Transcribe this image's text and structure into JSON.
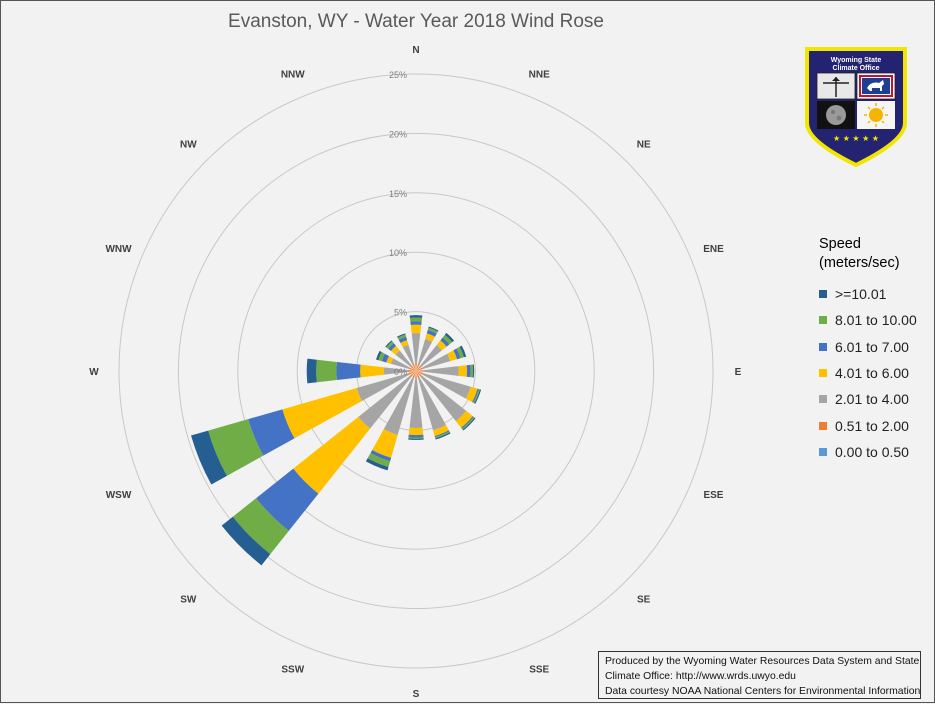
{
  "chart_data": {
    "type": "radar",
    "title": "Evanston, WY - Water Year 2018 Wind Rose",
    "directions": [
      "N",
      "NNE",
      "NE",
      "ENE",
      "E",
      "ESE",
      "SE",
      "SSE",
      "S",
      "SSW",
      "SW",
      "WSW",
      "W",
      "WNW",
      "NW",
      "NNW"
    ],
    "radial_ticks": [
      "5%",
      "10%",
      "15%",
      "20%",
      "25%"
    ],
    "rlim": [
      0,
      25
    ],
    "legend_title": "Speed (meters/sec)",
    "legend_position": "right",
    "series": [
      {
        "name": "0.00 to 0.50",
        "color": "#5b9bd5",
        "values": [
          0,
          0,
          0,
          0,
          0,
          0,
          0,
          0,
          0,
          0,
          0,
          0,
          0,
          0,
          0,
          0
        ]
      },
      {
        "name": "0.51 to 2.00",
        "color": "#ed7d31",
        "values": [
          0.7,
          0.6,
          0.6,
          0.6,
          0.6,
          0.6,
          0.6,
          0.6,
          0.6,
          0.6,
          0.7,
          0.7,
          0.7,
          0.6,
          0.6,
          0.6
        ]
      },
      {
        "name": "2.01 to 4.00",
        "color": "#a5a5a5",
        "values": [
          2.5,
          2.2,
          2.2,
          2.4,
          3.0,
          4.2,
          4.8,
          4.6,
          4.2,
          5.0,
          5.5,
          4.5,
          2.0,
          1.6,
          1.6,
          1.7
        ]
      },
      {
        "name": "4.01 to 6.00",
        "color": "#ffc000",
        "values": [
          0.7,
          0.5,
          0.5,
          0.6,
          0.7,
          0.6,
          0.7,
          0.5,
          0.6,
          2.0,
          7.0,
          6.5,
          2.0,
          0.4,
          0.5,
          0.4
        ]
      },
      {
        "name": "6.01 to 7.00",
        "color": "#4472c4",
        "values": [
          0.3,
          0.3,
          0.3,
          0.3,
          0.3,
          0.1,
          0.1,
          0.1,
          0.2,
          0.3,
          4.0,
          3.0,
          2.0,
          0.4,
          0.3,
          0.3
        ]
      },
      {
        "name": "8.01 to 10.00",
        "color": "#70ad47",
        "values": [
          0.3,
          0.2,
          0.3,
          0.3,
          0.2,
          0.1,
          0.1,
          0.1,
          0.1,
          0.5,
          2.5,
          3.5,
          1.7,
          0.3,
          0.2,
          0.2
        ]
      },
      {
        "name": ">=10.01",
        "color": "#255e91",
        "values": [
          0.2,
          0.1,
          0.2,
          0.2,
          0.1,
          0.1,
          0.1,
          0.1,
          0.1,
          0.3,
          1.2,
          1.5,
          0.8,
          0.2,
          0.1,
          0.1
        ]
      }
    ],
    "legend_order": [
      ">=10.01",
      "8.01 to 10.00",
      "6.01 to 7.00",
      "4.01 to 6.00",
      "2.01 to 4.00",
      "0.51 to 2.00",
      "0.00 to 0.50"
    ]
  },
  "legend": {
    "title_line1": "Speed",
    "title_line2": "(meters/sec)",
    "items": [
      {
        "label": ">=10.01",
        "color": "#255e91"
      },
      {
        "label": "8.01 to 10.00",
        "color": "#70ad47"
      },
      {
        "label": "6.01 to 7.00",
        "color": "#4472c4"
      },
      {
        "label": "4.01 to 6.00",
        "color": "#ffc000"
      },
      {
        "label": "2.01 to 4.00",
        "color": "#a5a5a5"
      },
      {
        "label": "0.51 to 2.00",
        "color": "#ed7d31"
      },
      {
        "label": "0.00 to 0.50",
        "color": "#5b9bd5"
      }
    ]
  },
  "badge": {
    "line1": "Wyoming State",
    "line2": "Climate Office",
    "stars": "★ ★ ★ ★ ★"
  },
  "credit": {
    "line1": "Produced by the Wyoming Water Resources Data System and State",
    "line2": "Climate Office: http://www.wrds.uwyo.edu",
    "line3": "Data courtesy NOAA National Centers for Environmental Information"
  }
}
